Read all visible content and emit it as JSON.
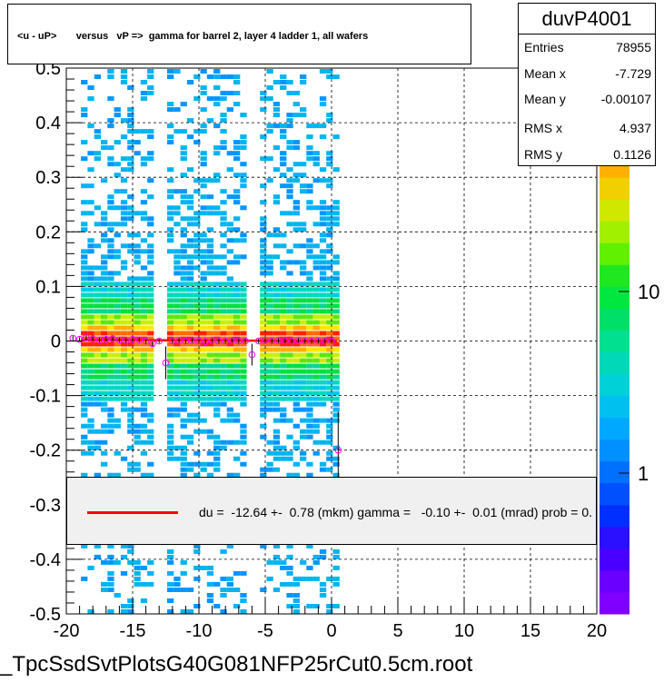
{
  "histogram": {
    "title": "<u - uP>       versus   vP =>  gamma for barrel 2, layer 4 ladder 1, all wafers",
    "name": "duvP4001",
    "stats": [
      {
        "label": "Entries",
        "value": "78955"
      },
      {
        "label": "Mean x",
        "value": "-7.729"
      },
      {
        "label": "Mean y",
        "value": "-0.00107"
      },
      {
        "label": "RMS x",
        "value": "4.937"
      },
      {
        "label": "RMS y",
        "value": "0.1126"
      }
    ],
    "fit_text": "du =  -12.64 +-  0.78 (mkm) gamma =   -0.10 +-  0.01 (mrad) prob = 0.",
    "footer": "_TpcSsdSvtPlotsG40G081NFP25rCut0.5cm.root",
    "colors": {
      "fit_line": "#ff0000",
      "marker": "#ff00ff",
      "grid": "#000000"
    }
  },
  "chart_data": {
    "type": "heatmap",
    "title": "<u - uP>       versus   vP =>  gamma for barrel 2, layer 4 ladder 1, all wafers",
    "xlim": [
      -20,
      20
    ],
    "ylim": [
      -0.5,
      0.5
    ],
    "x_ticks": [
      "-20",
      "-15",
      "-10",
      "-5",
      "0",
      "5",
      "10",
      "15",
      "20"
    ],
    "y_ticks": [
      "-0.5",
      "-0.4",
      "-0.3",
      "-0.2",
      "-0.1",
      "0",
      "0.1",
      "0.2",
      "0.3",
      "0.4",
      "0.5"
    ],
    "z_scale": "log",
    "z_ticks": [
      "1",
      "10"
    ],
    "grid": true,
    "data_x_range": [
      -18.9,
      0.4
    ],
    "empty_x_bands": [
      [
        -13.8,
        -12.4
      ],
      [
        -6.8,
        -5.6
      ]
    ],
    "profile": {
      "x": [
        -19.5,
        -19.0,
        -18.5,
        -18.0,
        -17.5,
        -17.0,
        -16.5,
        -16.0,
        -15.5,
        -15.0,
        -14.5,
        -14.0,
        -13.5,
        -13.0,
        -12.5,
        -12.0,
        -11.5,
        -11.0,
        -10.5,
        -10.0,
        -9.5,
        -9.0,
        -8.5,
        -8.0,
        -7.5,
        -7.0,
        -6.5,
        -6.0,
        -5.5,
        -5.0,
        -4.5,
        -4.0,
        -3.5,
        -3.0,
        -2.5,
        -2.0,
        -1.5,
        -1.0,
        -0.5,
        0.0,
        0.5
      ],
      "y": [
        0.005,
        0.003,
        0.006,
        0.004,
        0.002,
        0.003,
        0.004,
        0.002,
        0.001,
        0.003,
        0.002,
        0.0,
        -0.005,
        0.0,
        -0.04,
        0.0,
        0.001,
        0.0,
        0.001,
        0.0,
        -0.001,
        0.001,
        0.0,
        0.0,
        0.001,
        0.0,
        0.0,
        -0.025,
        0.0,
        0.001,
        0.0,
        0.001,
        0.0,
        0.0,
        0.001,
        0.0,
        0.0,
        0.0,
        0.0,
        0.0,
        -0.2
      ],
      "yerr": [
        0.004,
        0.004,
        0.004,
        0.004,
        0.004,
        0.004,
        0.004,
        0.004,
        0.004,
        0.004,
        0.004,
        0.004,
        0.006,
        0.004,
        0.03,
        0.004,
        0.004,
        0.004,
        0.004,
        0.004,
        0.004,
        0.004,
        0.004,
        0.004,
        0.004,
        0.004,
        0.004,
        0.02,
        0.004,
        0.004,
        0.004,
        0.004,
        0.004,
        0.004,
        0.004,
        0.004,
        0.004,
        0.004,
        0.004,
        0.004,
        0.07
      ]
    },
    "fit_line": {
      "slope": -0.0001,
      "intercept": -1e-05
    }
  }
}
